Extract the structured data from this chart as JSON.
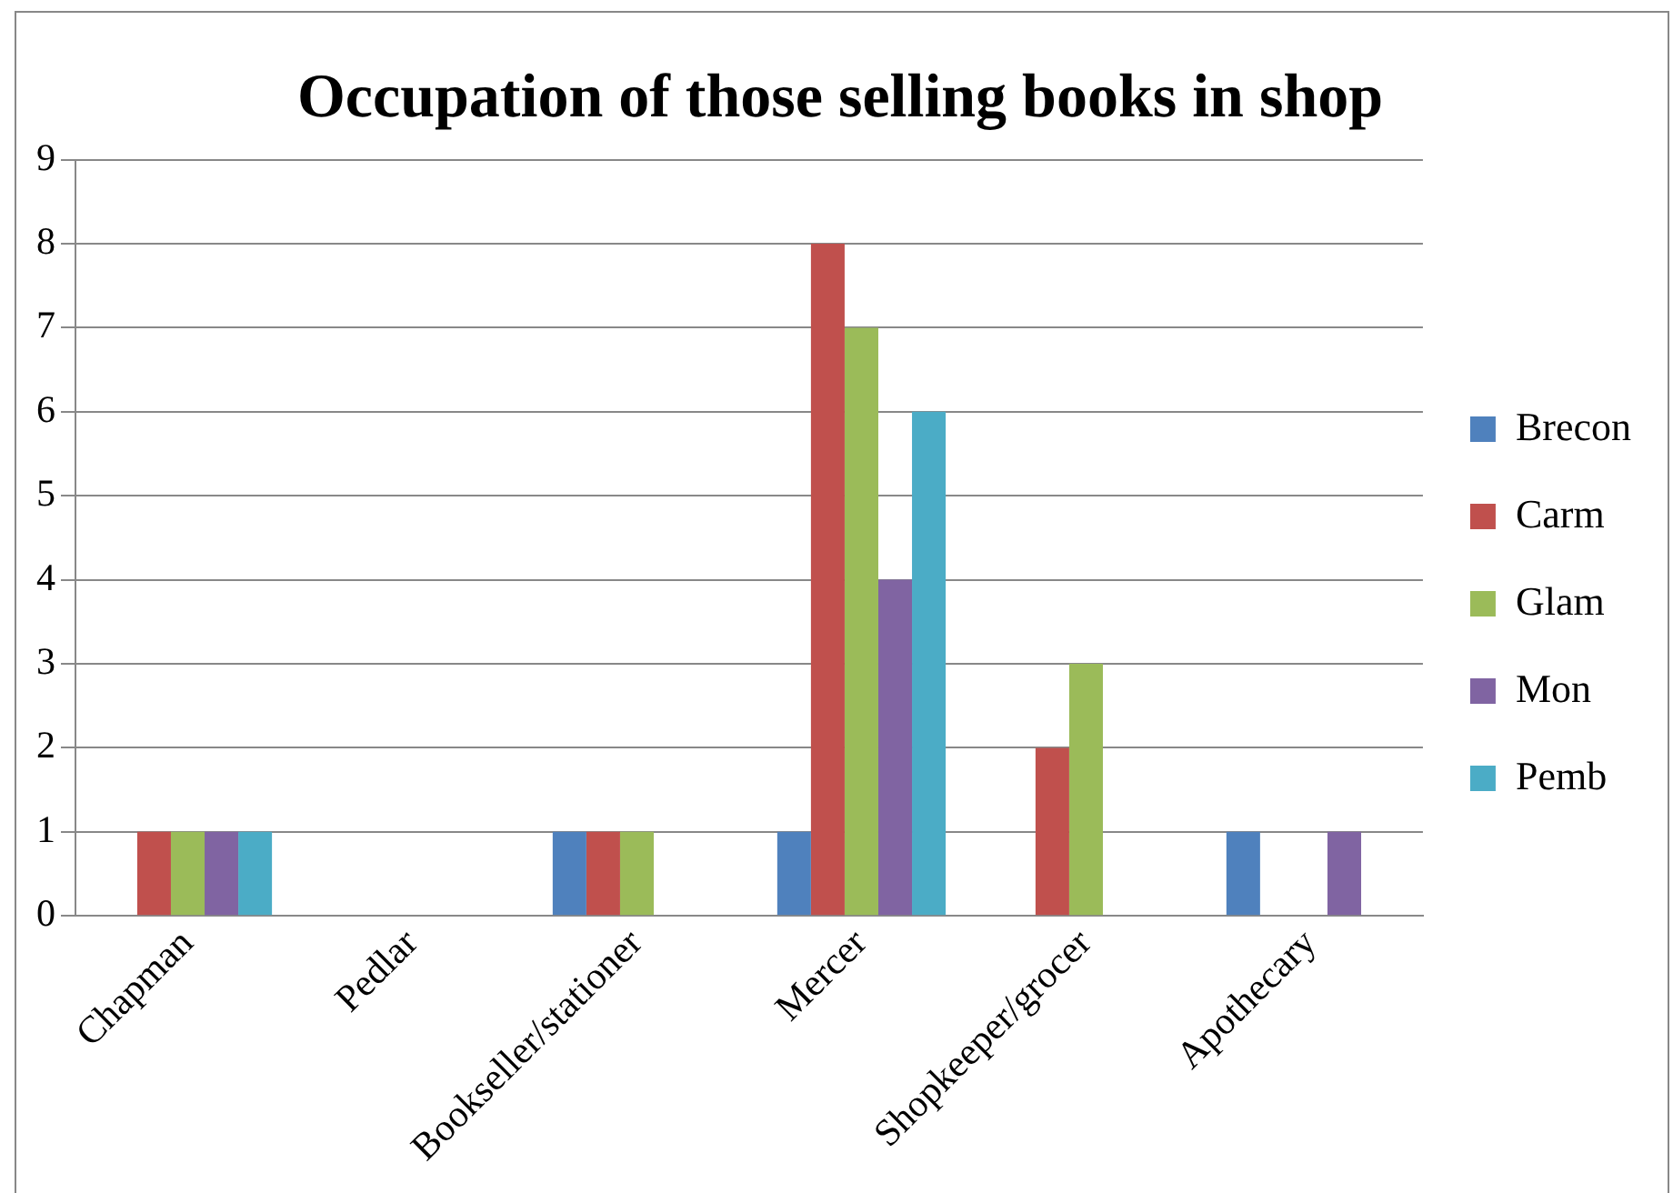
{
  "chart_data": {
    "type": "bar",
    "title": "Occupation of those selling books in shop",
    "categories": [
      "Chapman",
      "Pedlar",
      "Bookseller/stationer",
      "Mercer",
      "Shopkeeper/grocer",
      "Apothecary"
    ],
    "series": [
      {
        "name": "Brecon",
        "color": "#4f81bd",
        "values": [
          0,
          0,
          1,
          1,
          0,
          1
        ]
      },
      {
        "name": "Carm",
        "color": "#c0504d",
        "values": [
          1,
          0,
          1,
          8,
          2,
          0
        ]
      },
      {
        "name": "Glam",
        "color": "#9bbb59",
        "values": [
          1,
          0,
          1,
          7,
          3,
          0
        ]
      },
      {
        "name": "Mon",
        "color": "#8064a2",
        "values": [
          1,
          0,
          0,
          4,
          0,
          1
        ]
      },
      {
        "name": "Pemb",
        "color": "#4bacc6",
        "values": [
          1,
          0,
          0,
          6,
          0,
          0
        ]
      }
    ],
    "ylim": [
      0,
      9
    ],
    "yticks": [
      0,
      1,
      2,
      3,
      4,
      5,
      6,
      7,
      8,
      9
    ],
    "grid": "y",
    "legend": "right"
  }
}
